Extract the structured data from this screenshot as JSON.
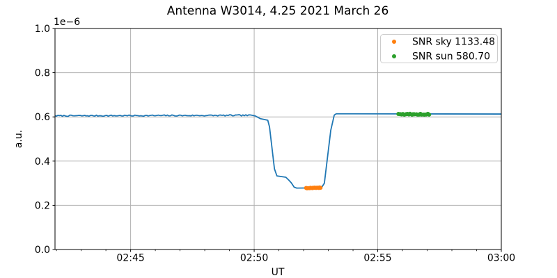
{
  "title": "Antenna W3014, 4.25 2021 March 26",
  "colors": {
    "signal_line": "#1f77b4",
    "sky_marker": "#ff7f0e",
    "sun_marker": "#2ca02c",
    "grid": "#b0b0b0",
    "axis": "#000000",
    "legend_border": "#cccccc"
  },
  "chart_data": {
    "type": "line",
    "title": "Antenna W3014, 4.25 2021 March 26",
    "xlabel": "UT",
    "ylabel": "a.u.",
    "offset_text": "1e−6",
    "x_units": "minutes after 02:00 UT",
    "xlim": [
      41.94,
      60.0
    ],
    "ylim": [
      0.0,
      1.0
    ],
    "yticks": [
      0.0,
      0.2,
      0.4,
      0.6,
      0.8,
      1.0
    ],
    "xticks": [
      {
        "t": 45,
        "label": "02:45"
      },
      {
        "t": 50,
        "label": "02:50"
      },
      {
        "t": 55,
        "label": "02:55"
      },
      {
        "t": 60,
        "label": "03:00"
      }
    ],
    "x_minor_step": 1,
    "grid": true,
    "legend_position": "upper right",
    "series": [
      {
        "name": "signal",
        "type": "line",
        "color": "#1f77b4",
        "points": [
          [
            41.94,
            0.605
          ],
          [
            49.9,
            0.607
          ],
          [
            50.05,
            0.604
          ],
          [
            50.25,
            0.592
          ],
          [
            50.55,
            0.585
          ],
          [
            50.62,
            0.555
          ],
          [
            50.82,
            0.365
          ],
          [
            50.92,
            0.333
          ],
          [
            51.28,
            0.327
          ],
          [
            51.4,
            0.314
          ],
          [
            51.5,
            0.302
          ],
          [
            51.62,
            0.282
          ],
          [
            51.72,
            0.278
          ],
          [
            52.72,
            0.279
          ],
          [
            52.84,
            0.3
          ],
          [
            53.1,
            0.54
          ],
          [
            53.24,
            0.608
          ],
          [
            53.32,
            0.614
          ],
          [
            60.0,
            0.613
          ]
        ],
        "noisy_ranges": [
          {
            "t0": 41.94,
            "t1": 49.9,
            "amp": 0.0028
          },
          {
            "t0": 51.74,
            "t1": 52.7,
            "amp": 0.0012
          },
          {
            "t0": 53.34,
            "t1": 60.0,
            "amp": 0.0028
          }
        ]
      },
      {
        "name": "SNR sky 1133.48",
        "type": "scatter",
        "color": "#ff7f0e",
        "x_start": 52.1,
        "x_end": 52.7,
        "y_center": 0.279,
        "count": 14
      },
      {
        "name": "SNR sun 580.70",
        "type": "scatter",
        "color": "#2ca02c",
        "x_start": 55.85,
        "x_end": 57.08,
        "y_center": 0.612,
        "count": 22
      }
    ],
    "legend": [
      {
        "label": "SNR sky 1133.48",
        "color": "#ff7f0e"
      },
      {
        "label": "SNR sun 580.70",
        "color": "#2ca02c"
      }
    ]
  }
}
